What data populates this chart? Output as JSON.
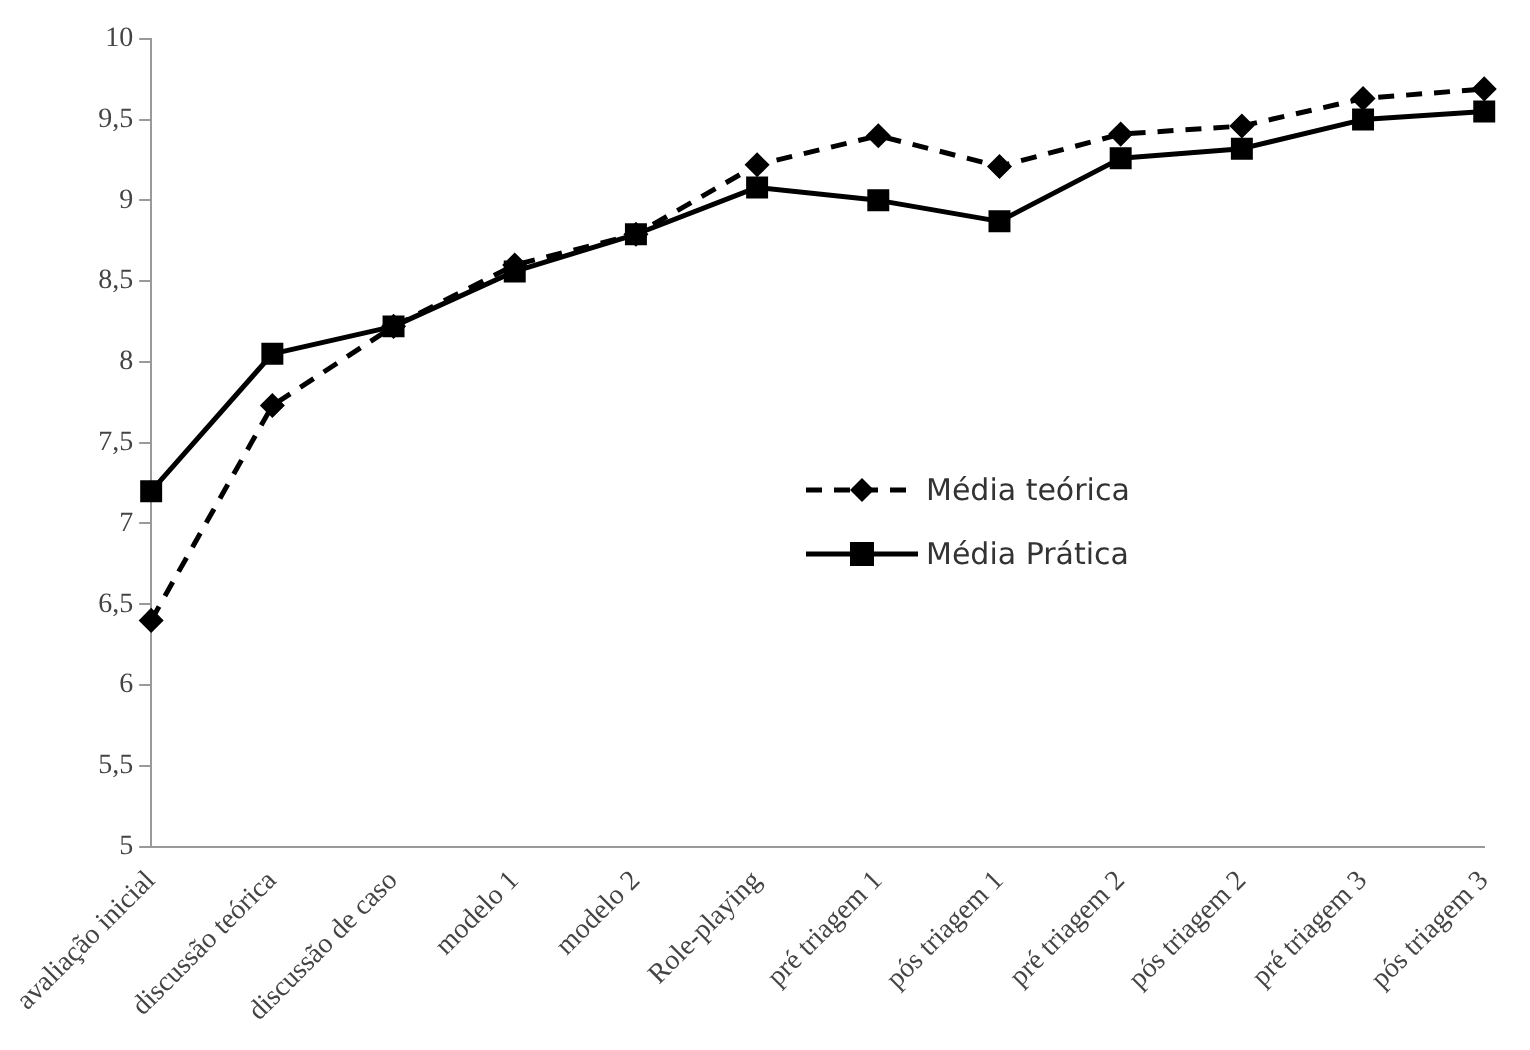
{
  "chart_data": {
    "type": "line",
    "categories": [
      "avaliação inicial",
      "discussão teórica",
      "discussão de caso",
      "modelo 1",
      "modelo 2",
      "Role-playing",
      "pré triagem 1",
      "pós triagem 1",
      "pré triagem 2",
      "pós triagem 2",
      "pré triagem 3",
      "pós triagem 3"
    ],
    "series": [
      {
        "name": "Média teórica",
        "color": "#000000",
        "line_style": "dashed",
        "marker": "diamond",
        "values": [
          6.4,
          7.73,
          8.22,
          8.6,
          8.79,
          9.22,
          9.4,
          9.21,
          9.41,
          9.46,
          9.63,
          9.69
        ]
      },
      {
        "name": "Média Prática",
        "color": "#000000",
        "line_style": "solid",
        "marker": "square",
        "values": [
          7.2,
          8.05,
          8.22,
          8.56,
          8.79,
          9.08,
          9.0,
          8.87,
          9.26,
          9.32,
          9.5,
          9.55
        ]
      }
    ],
    "ylim": [
      5,
      10
    ],
    "yticks": [
      5,
      {
        "value": 5.5,
        "label": "5,5"
      },
      6,
      {
        "value": 6.5,
        "label": "6,5"
      },
      7,
      {
        "value": 7.5,
        "label": "7,5"
      },
      8,
      {
        "value": 8.5,
        "label": "8,5"
      },
      9,
      {
        "value": 9.5,
        "label": "9,5"
      },
      10
    ],
    "grid": false,
    "legend": "right"
  }
}
